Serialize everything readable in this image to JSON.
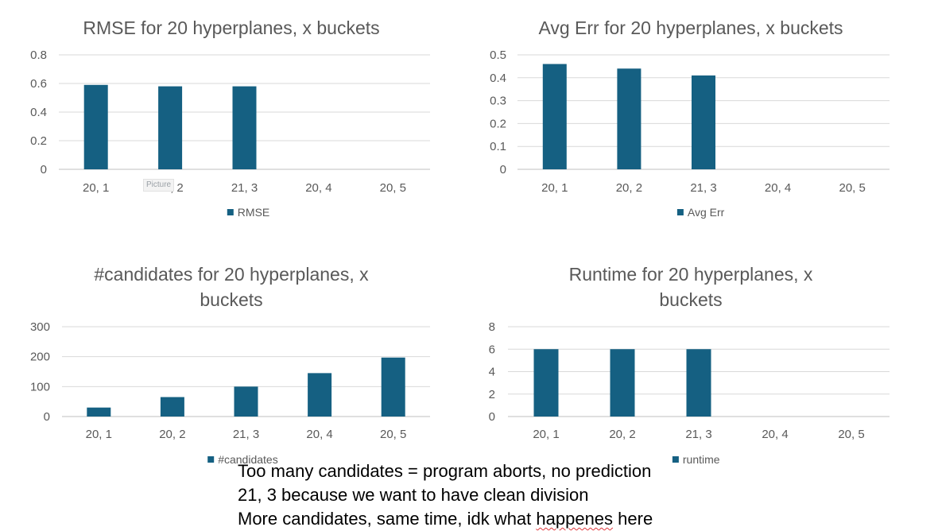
{
  "chart_data": [
    {
      "type": "bar",
      "title": "RMSE for 20 hyperplanes, x buckets",
      "title_lines": [
        "RMSE for 20 hyperplanes, x buckets"
      ],
      "categories": [
        "20, 1",
        "20, 2",
        "21, 3",
        "20, 4",
        "20, 5"
      ],
      "series": [
        {
          "name": "RMSE",
          "values": [
            0.59,
            0.58,
            0.58,
            null,
            null
          ]
        }
      ],
      "ylim": [
        0,
        0.8
      ],
      "yticks": [
        "0",
        "0.2",
        "0.4",
        "0.6",
        "0.8"
      ],
      "xlabel": "",
      "ylabel": "",
      "grid": true,
      "legend": "bottom",
      "color": "#156082"
    },
    {
      "type": "bar",
      "title": "Avg Err for 20 hyperplanes, x buckets",
      "title_lines": [
        "Avg Err for 20 hyperplanes, x buckets"
      ],
      "categories": [
        "20, 1",
        "20, 2",
        "21, 3",
        "20, 4",
        "20, 5"
      ],
      "series": [
        {
          "name": "Avg Err",
          "values": [
            0.46,
            0.44,
            0.41,
            null,
            null
          ]
        }
      ],
      "ylim": [
        0,
        0.5
      ],
      "yticks": [
        "0",
        "0.1",
        "0.2",
        "0.3",
        "0.4",
        "0.5"
      ],
      "xlabel": "",
      "ylabel": "",
      "grid": true,
      "legend": "bottom",
      "color": "#156082"
    },
    {
      "type": "bar",
      "title": "#candidates for 20 hyperplanes, x buckets",
      "title_lines": [
        "#candidates for 20 hyperplanes, x",
        "buckets"
      ],
      "categories": [
        "20, 1",
        "20, 2",
        "21, 3",
        "20, 4",
        "20, 5"
      ],
      "series": [
        {
          "name": "#candidates",
          "values": [
            30,
            65,
            100,
            145,
            197
          ]
        }
      ],
      "ylim": [
        0,
        300
      ],
      "yticks": [
        "0",
        "100",
        "200",
        "300"
      ],
      "xlabel": "",
      "ylabel": "",
      "grid": true,
      "legend": "bottom",
      "color": "#156082"
    },
    {
      "type": "bar",
      "title": "Runtime for 20 hyperplanes, x buckets",
      "title_lines": [
        "Runtime for 20 hyperplanes, x",
        "buckets"
      ],
      "categories": [
        "20, 1",
        "20, 2",
        "21, 3",
        "20, 4",
        "20, 5"
      ],
      "series": [
        {
          "name": "runtime",
          "values": [
            6,
            6,
            6,
            null,
            null
          ]
        }
      ],
      "ylim": [
        0,
        8
      ],
      "yticks": [
        "0",
        "2",
        "4",
        "6",
        "8"
      ],
      "xlabel": "",
      "ylabel": "",
      "grid": true,
      "legend": "bottom",
      "color": "#156082"
    }
  ],
  "notes": {
    "line1": "Too many candidates = program aborts, no prediction",
    "line2": "21, 3 because we want to have clean division",
    "line3_before": "More candidates, same time, idk what ",
    "line3_misspelled": "happenes",
    "line3_after": " here"
  },
  "picture_tag": "Picture"
}
